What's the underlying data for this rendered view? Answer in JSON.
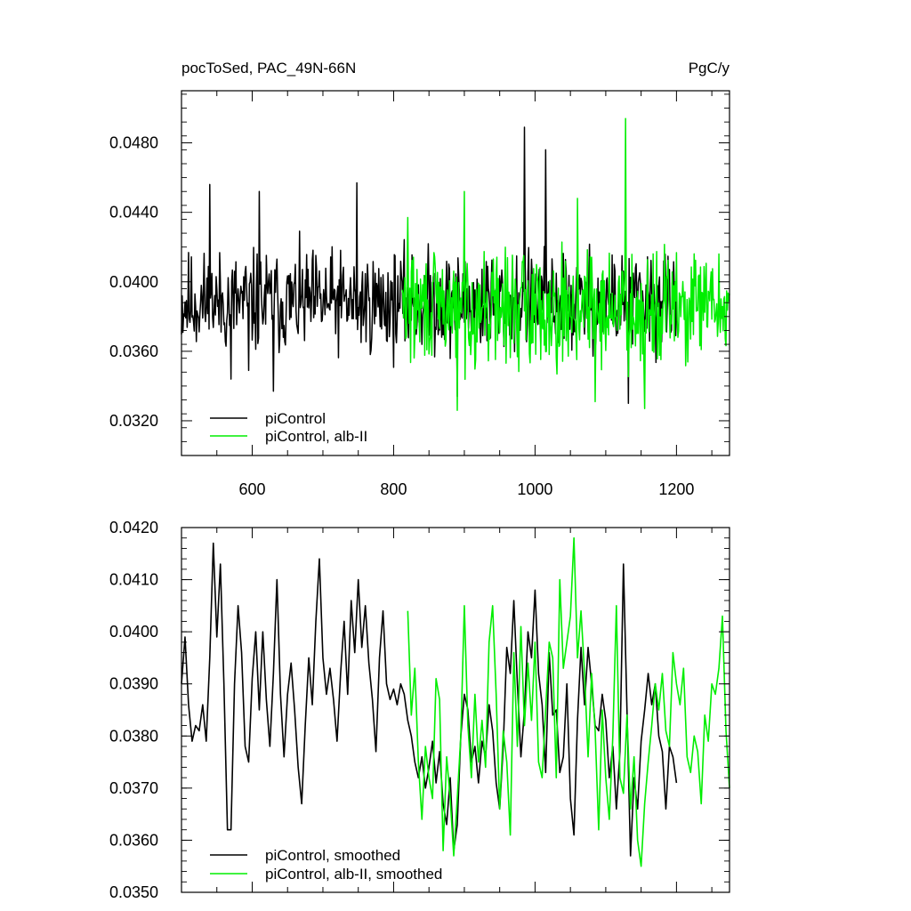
{
  "chart_data": [
    {
      "type": "line",
      "title_left": "pocToSed, PAC_49N-66N",
      "title_right": "PgC/y",
      "xlim": [
        500,
        1275
      ],
      "ylim": [
        0.03,
        0.051
      ],
      "x_ticks": [
        600,
        800,
        1000,
        1200
      ],
      "x_tick_labels": [
        "600",
        "800",
        "1000",
        "1200"
      ],
      "y_ticks": [
        0.032,
        0.036,
        0.04,
        0.044,
        0.048
      ],
      "y_tick_labels": [
        "0.0320",
        "0.0360",
        "0.0400",
        "0.0440",
        "0.0480"
      ],
      "legend": "bottom-left",
      "grid": false,
      "series": [
        {
          "name": "piControl",
          "color": "#000000",
          "generator": {
            "x_start": 500,
            "x_end": 1200,
            "mean": 0.0388,
            "amplitude": 0.0024,
            "seed": 11
          },
          "peaks": [
            [
              540,
              0.0456
            ],
            [
              610,
              0.0452
            ],
            [
              748,
              0.0457
            ],
            [
              985,
              0.0489
            ],
            [
              1015,
              0.0476
            ],
            [
              595,
              0.0349
            ],
            [
              630,
              0.0337
            ],
            [
              570,
              0.0344
            ],
            [
              890,
              0.0334
            ],
            [
              1132,
              0.033
            ]
          ]
        },
        {
          "name": "piControl, alb-II",
          "color": "#00ee00",
          "generator": {
            "x_start": 812,
            "x_end": 1275,
            "mean": 0.0385,
            "amplitude": 0.0026,
            "seed": 29
          },
          "peaks": [
            [
              1128,
              0.0494
            ],
            [
              820,
              0.0437
            ],
            [
              900,
              0.0452
            ],
            [
              1060,
              0.0448
            ],
            [
              1260,
              0.0416
            ],
            [
              890,
              0.0326
            ],
            [
              1155,
              0.0327
            ],
            [
              1085,
              0.0331
            ]
          ]
        }
      ]
    },
    {
      "type": "line",
      "xlim": [
        500,
        1275
      ],
      "ylim": [
        0.035,
        0.042
      ],
      "x_ticks": [
        600,
        800,
        1000,
        1200
      ],
      "y_ticks": [
        0.035,
        0.036,
        0.037,
        0.038,
        0.039,
        0.04,
        0.041,
        0.042
      ],
      "y_tick_labels": [
        "0.0350",
        "0.0360",
        "0.0370",
        "0.0380",
        "0.0390",
        "0.0400",
        "0.0410",
        "0.0420"
      ],
      "legend": "bottom-left",
      "grid": false,
      "series": [
        {
          "name": "piControl, smoothed",
          "color": "#000000",
          "x_range": [
            500,
            1200
          ],
          "x": [
            500,
            505,
            510,
            515,
            520,
            525,
            530,
            535,
            540,
            545,
            550,
            555,
            560,
            565,
            570,
            575,
            580,
            585,
            590,
            595,
            600,
            605,
            610,
            615,
            620,
            625,
            630,
            635,
            640,
            645,
            650,
            655,
            660,
            665,
            670,
            675,
            680,
            685,
            690,
            695,
            700,
            705,
            710,
            715,
            720,
            725,
            730,
            735,
            740,
            745,
            750,
            755,
            760,
            765,
            770,
            775,
            780,
            785,
            790,
            795,
            800,
            805,
            810,
            815,
            820,
            825,
            830,
            835,
            840,
            845,
            850,
            855,
            860,
            865,
            870,
            875,
            880,
            885,
            890,
            895,
            900,
            905,
            910,
            915,
            920,
            925,
            930,
            935,
            940,
            945,
            950,
            955,
            960,
            965,
            970,
            975,
            980,
            985,
            990,
            995,
            1000,
            1005,
            1010,
            1015,
            1020,
            1025,
            1030,
            1035,
            1040,
            1045,
            1050,
            1055,
            1060,
            1065,
            1070,
            1075,
            1080,
            1085,
            1090,
            1095,
            1100,
            1105,
            1110,
            1115,
            1120,
            1125,
            1130,
            1135,
            1140,
            1145,
            1150,
            1155,
            1160,
            1165,
            1170,
            1175,
            1180,
            1185,
            1190,
            1195,
            1200
          ],
          "values": [
            0.039,
            0.0399,
            0.0386,
            0.0379,
            0.0382,
            0.0381,
            0.0386,
            0.0379,
            0.0395,
            0.0417,
            0.0399,
            0.0413,
            0.039,
            0.0362,
            0.0362,
            0.039,
            0.0405,
            0.0396,
            0.0378,
            0.0375,
            0.0391,
            0.04,
            0.0385,
            0.04,
            0.0387,
            0.0378,
            0.0392,
            0.041,
            0.0388,
            0.0376,
            0.0388,
            0.0394,
            0.0385,
            0.0374,
            0.0367,
            0.0382,
            0.0395,
            0.0386,
            0.0402,
            0.0414,
            0.0395,
            0.0388,
            0.0393,
            0.0387,
            0.0379,
            0.0392,
            0.0402,
            0.0388,
            0.0406,
            0.0396,
            0.041,
            0.0397,
            0.0405,
            0.0394,
            0.0387,
            0.0377,
            0.0395,
            0.0404,
            0.039,
            0.0387,
            0.0389,
            0.0386,
            0.039,
            0.0388,
            0.0383,
            0.038,
            0.0375,
            0.0372,
            0.0376,
            0.037,
            0.0374,
            0.0379,
            0.0371,
            0.0377,
            0.0367,
            0.0363,
            0.0372,
            0.0358,
            0.0363,
            0.038,
            0.0388,
            0.0385,
            0.0375,
            0.0378,
            0.0371,
            0.0379,
            0.0376,
            0.0386,
            0.0381,
            0.0371,
            0.0366,
            0.0378,
            0.0397,
            0.0392,
            0.0406,
            0.039,
            0.0376,
            0.0385,
            0.04,
            0.0395,
            0.0408,
            0.0392,
            0.0386,
            0.0373,
            0.0396,
            0.0384,
            0.0385,
            0.0373,
            0.0376,
            0.039,
            0.0368,
            0.0361,
            0.0383,
            0.0397,
            0.0386,
            0.0397,
            0.039,
            0.0382,
            0.0381,
            0.0388,
            0.0383,
            0.0372,
            0.0378,
            0.0366,
            0.0377,
            0.0413,
            0.0385,
            0.0357,
            0.0372,
            0.0366,
            0.0379,
            0.0385,
            0.0392,
            0.0386,
            0.039,
            0.038,
            0.0377,
            0.0366,
            0.0378,
            0.0376,
            0.0371
          ]
        },
        {
          "name": "piControl, alb-II, smoothed",
          "color": "#00ee00",
          "x_range": [
            820,
            1275
          ],
          "x": [
            820,
            825,
            830,
            835,
            840,
            845,
            850,
            855,
            860,
            865,
            870,
            875,
            880,
            885,
            890,
            895,
            900,
            905,
            910,
            915,
            920,
            925,
            930,
            935,
            940,
            945,
            950,
            955,
            960,
            965,
            970,
            975,
            980,
            985,
            990,
            995,
            1000,
            1005,
            1010,
            1015,
            1020,
            1025,
            1030,
            1035,
            1040,
            1045,
            1050,
            1055,
            1060,
            1065,
            1070,
            1075,
            1080,
            1085,
            1090,
            1095,
            1100,
            1105,
            1110,
            1115,
            1120,
            1125,
            1130,
            1135,
            1140,
            1145,
            1150,
            1155,
            1160,
            1165,
            1170,
            1175,
            1180,
            1185,
            1190,
            1195,
            1200,
            1205,
            1210,
            1215,
            1220,
            1225,
            1230,
            1235,
            1240,
            1245,
            1250,
            1255,
            1260,
            1265,
            1270,
            1275
          ],
          "values": [
            0.0404,
            0.0384,
            0.0393,
            0.0375,
            0.0364,
            0.0378,
            0.0372,
            0.0368,
            0.0391,
            0.0387,
            0.0358,
            0.0376,
            0.0368,
            0.0357,
            0.0368,
            0.038,
            0.0405,
            0.0382,
            0.0372,
            0.0388,
            0.0375,
            0.0383,
            0.0374,
            0.0398,
            0.0405,
            0.0388,
            0.0366,
            0.0381,
            0.0375,
            0.0361,
            0.0396,
            0.0378,
            0.0401,
            0.0382,
            0.0394,
            0.0383,
            0.0398,
            0.0375,
            0.0372,
            0.0385,
            0.0398,
            0.0395,
            0.0372,
            0.041,
            0.0393,
            0.0398,
            0.0403,
            0.0418,
            0.0395,
            0.0404,
            0.0392,
            0.0376,
            0.0392,
            0.0381,
            0.0362,
            0.0385,
            0.0372,
            0.0364,
            0.038,
            0.0405,
            0.0372,
            0.0369,
            0.0384,
            0.0366,
            0.0376,
            0.036,
            0.0355,
            0.0367,
            0.0375,
            0.0382,
            0.039,
            0.0385,
            0.0392,
            0.0381,
            0.0378,
            0.0396,
            0.039,
            0.0386,
            0.0393,
            0.0376,
            0.0373,
            0.038,
            0.0377,
            0.0367,
            0.0384,
            0.0379,
            0.039,
            0.0388,
            0.0393,
            0.0403,
            0.0381,
            0.037
          ]
        }
      ]
    }
  ]
}
